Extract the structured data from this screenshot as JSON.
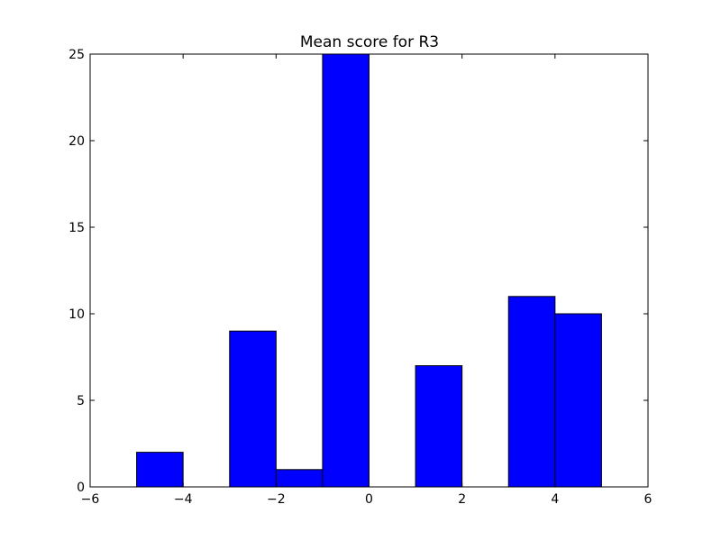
{
  "chart_data": {
    "type": "bar",
    "title": "Mean score for R3",
    "xlabel": "",
    "ylabel": "",
    "xlim": [
      -6,
      6
    ],
    "ylim": [
      0,
      25
    ],
    "x_ticks": [
      -6,
      -4,
      -2,
      0,
      2,
      4,
      6
    ],
    "x_tick_labels": [
      "−6",
      "−4",
      "−2",
      "0",
      "2",
      "4",
      "6"
    ],
    "y_ticks": [
      0,
      5,
      10,
      15,
      20,
      25
    ],
    "y_tick_labels": [
      "0",
      "5",
      "10",
      "15",
      "20",
      "25"
    ],
    "grid": false,
    "bar_color": "#0000ff",
    "edge_color": "#000000",
    "bins": [
      {
        "x0": -5,
        "x1": -4,
        "value": 2
      },
      {
        "x0": -3,
        "x1": -2,
        "value": 9
      },
      {
        "x0": -2,
        "x1": -1,
        "value": 1
      },
      {
        "x0": -1,
        "x1": 0,
        "value": 25
      },
      {
        "x0": 1,
        "x1": 2,
        "value": 7
      },
      {
        "x0": 3,
        "x1": 4,
        "value": 11
      },
      {
        "x0": 4,
        "x1": 5,
        "value": 10
      }
    ]
  }
}
